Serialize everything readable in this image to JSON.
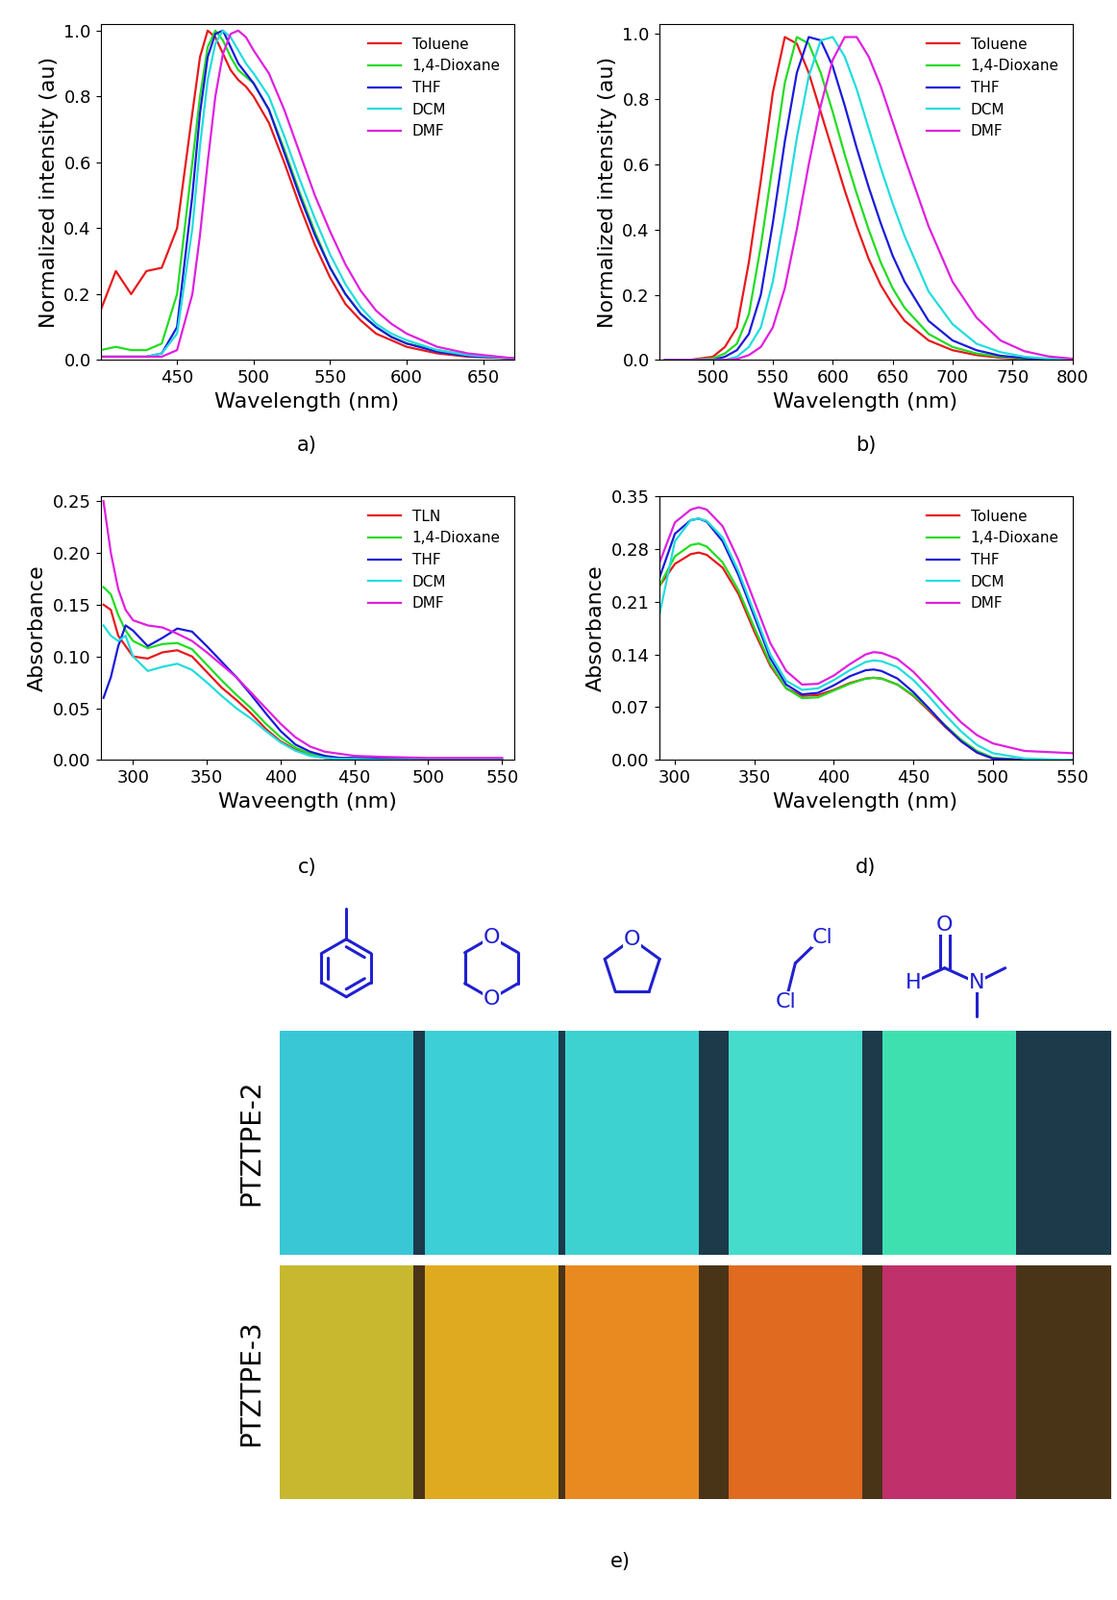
{
  "chart_data": [
    {
      "type": "line",
      "annotation": "a)",
      "xlabel": "Wavelength (nm)",
      "ylabel": "Normalized intensity (au)",
      "xlim": [
        400,
        670
      ],
      "xticks": [
        450,
        500,
        550,
        600,
        650
      ],
      "ylim": [
        0,
        1.02
      ],
      "yticks": [
        {
          "value": 0.0,
          "label": "0.0"
        },
        {
          "value": 0.2,
          "label": "0.2"
        },
        {
          "value": 0.4,
          "label": "0.4"
        },
        {
          "value": 0.6,
          "label": "0.6"
        },
        {
          "value": 0.8,
          "label": "0.8"
        },
        {
          "value": 1.0,
          "label": "1.0"
        }
      ],
      "legend": "upper right",
      "x": [
        400,
        410,
        420,
        430,
        440,
        450,
        460,
        465,
        470,
        475,
        480,
        485,
        490,
        495,
        500,
        510,
        520,
        530,
        540,
        550,
        560,
        570,
        580,
        590,
        600,
        620,
        640,
        670
      ],
      "series": [
        {
          "name": "Toluene",
          "color": "#e8191b",
          "values": [
            0.15,
            0.27,
            0.2,
            0.27,
            0.28,
            0.4,
            0.75,
            0.92,
            1.0,
            0.98,
            0.93,
            0.88,
            0.85,
            0.83,
            0.8,
            0.72,
            0.6,
            0.47,
            0.35,
            0.25,
            0.17,
            0.12,
            0.08,
            0.06,
            0.04,
            0.02,
            0.01,
            0.005
          ]
        },
        {
          "name": "1,4-Dioxane",
          "color": "#22dd22",
          "values": [
            0.03,
            0.04,
            0.03,
            0.03,
            0.05,
            0.2,
            0.6,
            0.8,
            0.95,
            1.0,
            0.97,
            0.92,
            0.88,
            0.86,
            0.84,
            0.76,
            0.64,
            0.51,
            0.39,
            0.28,
            0.2,
            0.14,
            0.1,
            0.07,
            0.05,
            0.03,
            0.015,
            0.005
          ]
        },
        {
          "name": "THF",
          "color": "#1a1adb",
          "values": [
            0.01,
            0.01,
            0.01,
            0.01,
            0.02,
            0.1,
            0.5,
            0.75,
            0.92,
            0.99,
            1.0,
            0.95,
            0.9,
            0.87,
            0.84,
            0.76,
            0.63,
            0.5,
            0.38,
            0.28,
            0.2,
            0.14,
            0.1,
            0.07,
            0.05,
            0.025,
            0.012,
            0.005
          ]
        },
        {
          "name": "DCM",
          "color": "#22dddd",
          "values": [
            0.01,
            0.01,
            0.01,
            0.01,
            0.02,
            0.08,
            0.4,
            0.65,
            0.85,
            0.96,
            1.0,
            0.98,
            0.94,
            0.9,
            0.87,
            0.8,
            0.68,
            0.55,
            0.43,
            0.32,
            0.23,
            0.16,
            0.11,
            0.08,
            0.06,
            0.03,
            0.015,
            0.005
          ]
        },
        {
          "name": "DMF",
          "color": "#e020e0",
          "values": [
            0.01,
            0.01,
            0.01,
            0.01,
            0.01,
            0.03,
            0.2,
            0.38,
            0.6,
            0.8,
            0.93,
            0.99,
            1.0,
            0.98,
            0.94,
            0.87,
            0.76,
            0.63,
            0.5,
            0.39,
            0.29,
            0.21,
            0.15,
            0.11,
            0.08,
            0.04,
            0.02,
            0.005
          ]
        }
      ]
    },
    {
      "type": "line",
      "annotation": "b)",
      "xlabel": "Wavelength (nm)",
      "ylabel": "Normalized intensity (au)",
      "xlim": [
        455,
        800
      ],
      "xticks": [
        500,
        550,
        600,
        650,
        700,
        750,
        800
      ],
      "ylim": [
        0,
        1.03
      ],
      "yticks": [
        {
          "value": 0.0,
          "label": "0.0"
        },
        {
          "value": 0.2,
          "label": "0.2"
        },
        {
          "value": 0.4,
          "label": "0.4"
        },
        {
          "value": 0.6,
          "label": "0.6"
        },
        {
          "value": 0.8,
          "label": "0.8"
        },
        {
          "value": 1.0,
          "label": "1.0"
        }
      ],
      "legend": "upper right",
      "x": [
        460,
        480,
        500,
        510,
        520,
        530,
        540,
        550,
        560,
        570,
        580,
        590,
        600,
        610,
        620,
        630,
        640,
        650,
        660,
        680,
        700,
        720,
        740,
        760,
        780,
        800
      ],
      "series": [
        {
          "name": "Toluene",
          "color": "#e8191b",
          "values": [
            0,
            0,
            0.01,
            0.04,
            0.1,
            0.3,
            0.55,
            0.82,
            0.99,
            0.97,
            0.88,
            0.76,
            0.64,
            0.52,
            0.41,
            0.31,
            0.23,
            0.17,
            0.12,
            0.06,
            0.03,
            0.015,
            0.007,
            0.003,
            0.001,
            0
          ]
        },
        {
          "name": "1,4-Dioxane",
          "color": "#22dd22",
          "values": [
            0,
            0,
            0.005,
            0.02,
            0.05,
            0.14,
            0.35,
            0.6,
            0.85,
            0.99,
            0.97,
            0.88,
            0.76,
            0.63,
            0.51,
            0.4,
            0.3,
            0.22,
            0.16,
            0.08,
            0.04,
            0.02,
            0.01,
            0.004,
            0.002,
            0
          ]
        },
        {
          "name": "THF",
          "color": "#1a1adb",
          "values": [
            0,
            0,
            0,
            0.01,
            0.03,
            0.08,
            0.2,
            0.42,
            0.67,
            0.88,
            0.99,
            0.98,
            0.9,
            0.78,
            0.65,
            0.53,
            0.42,
            0.32,
            0.24,
            0.12,
            0.06,
            0.03,
            0.013,
            0.006,
            0.002,
            0
          ]
        },
        {
          "name": "DCM",
          "color": "#22dddd",
          "values": [
            0,
            0,
            0,
            0,
            0.01,
            0.04,
            0.1,
            0.24,
            0.45,
            0.68,
            0.87,
            0.98,
            0.99,
            0.93,
            0.83,
            0.71,
            0.59,
            0.48,
            0.38,
            0.21,
            0.11,
            0.05,
            0.024,
            0.01,
            0.004,
            0.001
          ]
        },
        {
          "name": "DMF",
          "color": "#e020e0",
          "values": [
            0,
            0,
            0,
            0,
            0.003,
            0.015,
            0.04,
            0.1,
            0.22,
            0.4,
            0.6,
            0.78,
            0.92,
            0.99,
            0.99,
            0.93,
            0.84,
            0.73,
            0.62,
            0.41,
            0.24,
            0.13,
            0.06,
            0.027,
            0.011,
            0.004
          ]
        }
      ]
    },
    {
      "type": "line",
      "annotation": "c)",
      "xlabel": "Waveength (nm)",
      "ylabel": "Absorbance",
      "xlim": [
        278,
        558
      ],
      "xticks": [
        300,
        350,
        400,
        450,
        500,
        550
      ],
      "ylim": [
        0,
        0.255
      ],
      "yticks": [
        {
          "value": 0.0,
          "label": "0.00"
        },
        {
          "value": 0.05,
          "label": "0.05"
        },
        {
          "value": 0.1,
          "label": "0.10"
        },
        {
          "value": 0.15,
          "label": "0.15"
        },
        {
          "value": 0.2,
          "label": "0.20"
        },
        {
          "value": 0.25,
          "label": "0.25"
        }
      ],
      "legend": "upper right",
      "x": [
        280,
        285,
        290,
        295,
        300,
        310,
        320,
        330,
        340,
        350,
        360,
        370,
        380,
        390,
        400,
        410,
        420,
        430,
        440,
        450,
        470,
        500,
        550
      ],
      "series": [
        {
          "name": "TLN",
          "color": "#e8191b",
          "values": [
            0.15,
            0.145,
            0.12,
            0.11,
            0.1,
            0.098,
            0.104,
            0.106,
            0.1,
            0.085,
            0.07,
            0.058,
            0.045,
            0.03,
            0.018,
            0.01,
            0.005,
            0.002,
            0.001,
            0,
            0,
            0,
            0
          ]
        },
        {
          "name": "1,4-Dioxane",
          "color": "#22dd22",
          "values": [
            0.167,
            0.16,
            0.14,
            0.125,
            0.115,
            0.108,
            0.112,
            0.113,
            0.107,
            0.092,
            0.077,
            0.063,
            0.05,
            0.035,
            0.022,
            0.012,
            0.006,
            0.003,
            0.002,
            0.001,
            0.001,
            0.001,
            0
          ]
        },
        {
          "name": "THF",
          "color": "#1a1adb",
          "values": [
            0.06,
            0.08,
            0.11,
            0.13,
            0.125,
            0.11,
            0.118,
            0.127,
            0.124,
            0.11,
            0.095,
            0.08,
            0.063,
            0.045,
            0.028,
            0.015,
            0.008,
            0.004,
            0.002,
            0.002,
            0.002,
            0.001,
            0.001
          ]
        },
        {
          "name": "DCM",
          "color": "#22dddd",
          "values": [
            0.13,
            0.12,
            0.115,
            0.12,
            0.1,
            0.086,
            0.09,
            0.093,
            0.087,
            0.075,
            0.062,
            0.05,
            0.04,
            0.028,
            0.017,
            0.009,
            0.004,
            0.002,
            0.001,
            0.001,
            0,
            0,
            0
          ]
        },
        {
          "name": "DMF",
          "color": "#e020e0",
          "values": [
            0.25,
            0.2,
            0.165,
            0.145,
            0.135,
            0.13,
            0.128,
            0.122,
            0.115,
            0.104,
            0.092,
            0.08,
            0.065,
            0.05,
            0.035,
            0.022,
            0.013,
            0.008,
            0.006,
            0.004,
            0.003,
            0.002,
            0.002
          ]
        }
      ]
    },
    {
      "type": "line",
      "annotation": "d)",
      "xlabel": "Wavelength (nm)",
      "ylabel": "Absorbance",
      "xlim": [
        290,
        550
      ],
      "xticks": [
        300,
        350,
        400,
        450,
        500,
        550
      ],
      "ylim": [
        0,
        0.35
      ],
      "yticks": [
        {
          "value": 0.0,
          "label": "0.00"
        },
        {
          "value": 0.07,
          "label": "0.07"
        },
        {
          "value": 0.14,
          "label": "0.14"
        },
        {
          "value": 0.21,
          "label": "0.21"
        },
        {
          "value": 0.28,
          "label": "0.28"
        },
        {
          "value": 0.35,
          "label": "0.35"
        }
      ],
      "legend": "upper right",
      "x": [
        290,
        300,
        310,
        315,
        320,
        330,
        340,
        350,
        360,
        370,
        380,
        390,
        400,
        410,
        420,
        425,
        430,
        440,
        450,
        460,
        470,
        480,
        490,
        500,
        520,
        550
      ],
      "series": [
        {
          "name": "Toluene",
          "color": "#e8191b",
          "values": [
            0.23,
            0.26,
            0.273,
            0.275,
            0.272,
            0.255,
            0.22,
            0.17,
            0.125,
            0.095,
            0.085,
            0.086,
            0.093,
            0.102,
            0.108,
            0.109,
            0.108,
            0.1,
            0.085,
            0.065,
            0.044,
            0.025,
            0.01,
            0.002,
            0,
            0
          ]
        },
        {
          "name": "1,4-Dioxane",
          "color": "#22dd22",
          "values": [
            0.23,
            0.27,
            0.285,
            0.287,
            0.283,
            0.262,
            0.225,
            0.175,
            0.128,
            0.095,
            0.082,
            0.083,
            0.092,
            0.101,
            0.108,
            0.109,
            0.108,
            0.1,
            0.086,
            0.067,
            0.046,
            0.027,
            0.012,
            0.003,
            0,
            0
          ]
        },
        {
          "name": "THF",
          "color": "#1a1adb",
          "values": [
            0.24,
            0.3,
            0.318,
            0.32,
            0.316,
            0.29,
            0.245,
            0.19,
            0.135,
            0.1,
            0.087,
            0.089,
            0.099,
            0.111,
            0.119,
            0.12,
            0.118,
            0.108,
            0.09,
            0.068,
            0.045,
            0.025,
            0.01,
            0.002,
            0,
            0
          ]
        },
        {
          "name": "DCM",
          "color": "#22dddd",
          "values": [
            0.19,
            0.29,
            0.318,
            0.32,
            0.317,
            0.295,
            0.25,
            0.195,
            0.14,
            0.105,
            0.093,
            0.095,
            0.106,
            0.119,
            0.13,
            0.132,
            0.131,
            0.123,
            0.106,
            0.084,
            0.06,
            0.038,
            0.02,
            0.009,
            0.002,
            0
          ]
        },
        {
          "name": "DMF",
          "color": "#e020e0",
          "values": [
            0.26,
            0.315,
            0.332,
            0.335,
            0.332,
            0.31,
            0.265,
            0.21,
            0.155,
            0.118,
            0.1,
            0.101,
            0.112,
            0.127,
            0.14,
            0.143,
            0.142,
            0.134,
            0.117,
            0.095,
            0.072,
            0.05,
            0.033,
            0.022,
            0.012,
            0.009
          ]
        }
      ]
    }
  ],
  "panel_e": {
    "annotation": "e)",
    "solvents": [
      {
        "atoms": []
      },
      {
        "atoms": [
          "O",
          "O"
        ]
      },
      {
        "atoms": [
          "O"
        ]
      },
      {
        "atoms": [
          "Cl",
          "Cl"
        ]
      },
      {
        "atoms": [
          "O",
          "H",
          "N"
        ]
      }
    ],
    "rows": [
      {
        "name": "PTZTPE-2",
        "colors": [
          "#39c7d6",
          "#3ccfd5",
          "#3dd2d0",
          "#45dccb",
          "#3fe0b0"
        ]
      },
      {
        "name": "PTZTPE-3",
        "colors": [
          "#c8b830",
          "#e0aa20",
          "#e88a20",
          "#e06a20",
          "#c0306a"
        ]
      }
    ]
  }
}
